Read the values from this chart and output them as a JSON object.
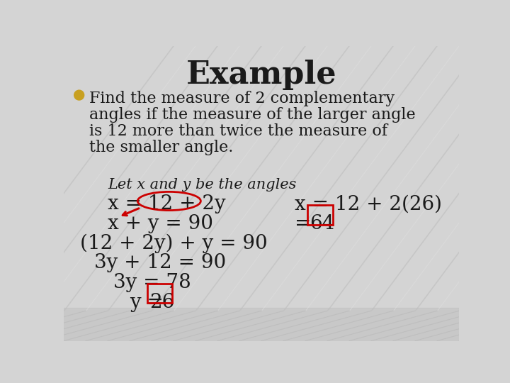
{
  "title": "Example",
  "title_fontsize": 32,
  "bg_color": "#d4d4d4",
  "bg_bottom_color": "#c8c8c8",
  "text_color": "#1a1a1a",
  "bullet_color": "#c8a020",
  "bullet_lines": [
    "Find the measure of 2 complementary",
    "angles if the measure of the larger angle",
    "is 12 more than twice the measure of",
    "the smaller angle."
  ],
  "line_let": "Let x and y be the angles",
  "line1": "x = 12 + 2y",
  "line2": "x + y = 90",
  "line3": "(12 + 2y) + y = 90",
  "line4": "3y + 12 = 90",
  "line5": "3y = 78",
  "line6": "y = 26",
  "line_r1": "x = 12 + 2(26)",
  "line_r2": "= 64",
  "highlight_color": "#cc0000",
  "bullet_fontsize": 16,
  "let_fontsize": 15,
  "math_fontsize": 20
}
